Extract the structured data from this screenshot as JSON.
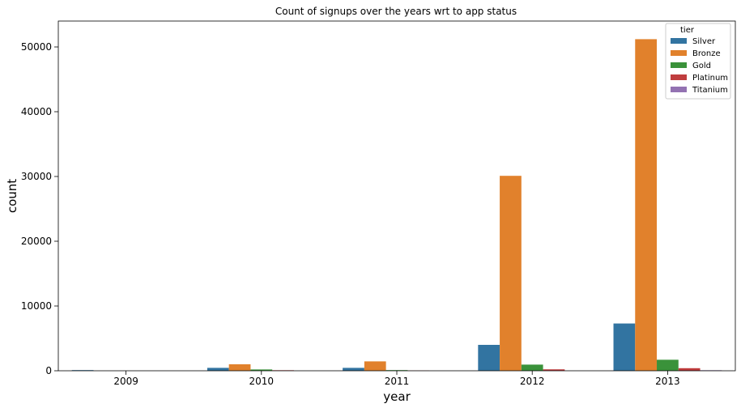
{
  "chart_data": {
    "type": "bar",
    "title": "Count of signups over the years wrt to app status",
    "xlabel": "year",
    "ylabel": "count",
    "categories": [
      "2009",
      "2010",
      "2011",
      "2012",
      "2013"
    ],
    "ylim": [
      0,
      54000
    ],
    "yticks": [
      0,
      10000,
      20000,
      30000,
      40000,
      50000
    ],
    "legend": {
      "title": "tier",
      "placement": "top-right"
    },
    "grid": false,
    "series": [
      {
        "name": "Silver",
        "color": "#3274a1",
        "values": [
          100,
          450,
          450,
          4000,
          7300
        ]
      },
      {
        "name": "Bronze",
        "color": "#e1812c",
        "values": [
          0,
          1000,
          1450,
          30100,
          51200
        ]
      },
      {
        "name": "Gold",
        "color": "#3a923a",
        "values": [
          0,
          200,
          100,
          950,
          1700
        ]
      },
      {
        "name": "Platinum",
        "color": "#c03d3e",
        "values": [
          0,
          80,
          30,
          220,
          400
        ]
      },
      {
        "name": "Titanium",
        "color": "#9372b2",
        "values": [
          0,
          0,
          0,
          0,
          80
        ]
      }
    ]
  }
}
